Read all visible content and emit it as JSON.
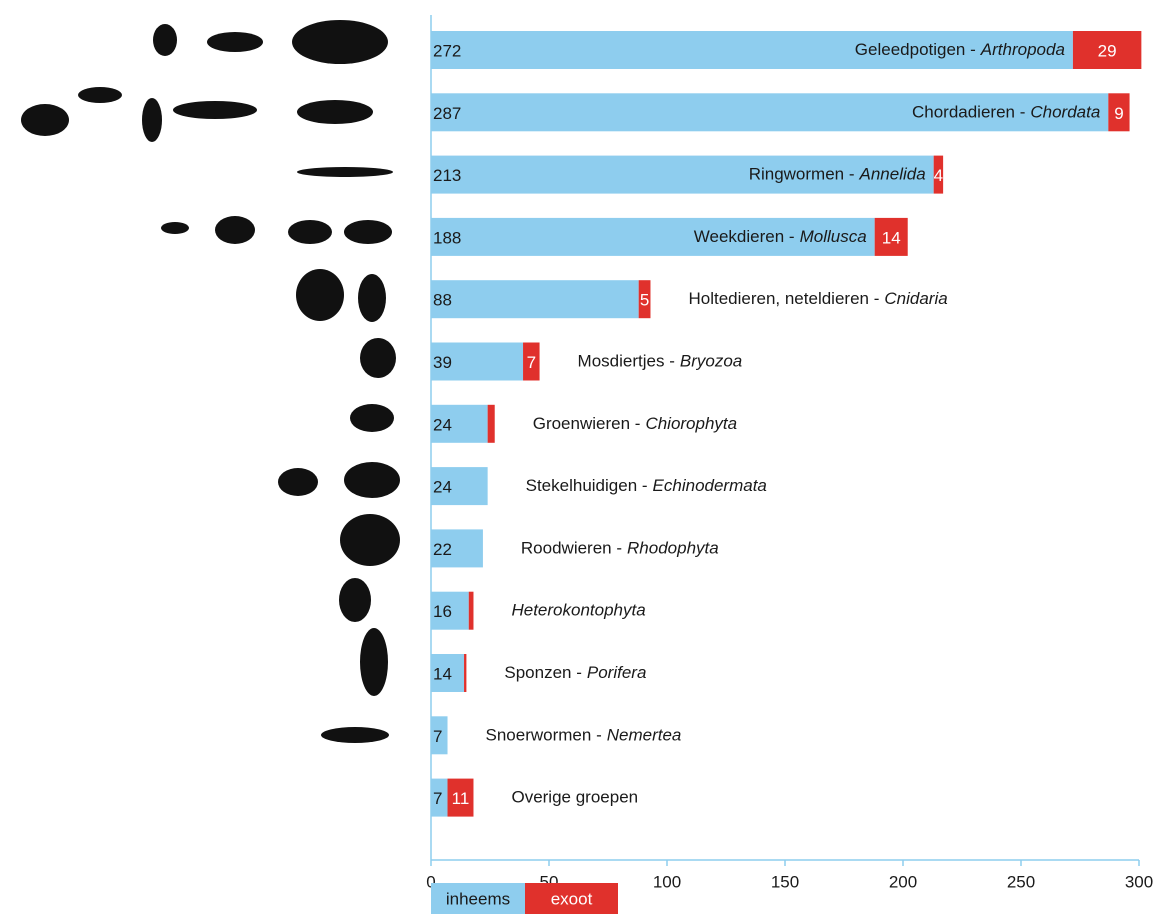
{
  "chart_data": {
    "type": "stacked_barh",
    "categories": [
      {
        "name": "Geleedpotigen -",
        "latin": "Arthropoda"
      },
      {
        "name": "Chordadieren -",
        "latin": "Chordata"
      },
      {
        "name": "Ringwormen -",
        "latin": "Annelida"
      },
      {
        "name": "Weekdieren -",
        "latin": "Mollusca"
      },
      {
        "name": "Holtedieren, neteldieren -",
        "latin": "Cnidaria"
      },
      {
        "name": "Mosdiertjes -",
        "latin": "Bryozoa"
      },
      {
        "name": "Groenwieren -",
        "latin": "Chiorophyta"
      },
      {
        "name": "Stekelhuidigen -",
        "latin": "Echinodermata"
      },
      {
        "name": "Roodwieren -",
        "latin": "Rhodophyta"
      },
      {
        "latin": "Heterokontophyta"
      },
      {
        "name": "Sponzen -",
        "latin": "Porifera"
      },
      {
        "name": "Snoerwormen -",
        "latin": "Nemertea"
      },
      {
        "name": "Overige groepen"
      }
    ],
    "series": [
      {
        "name": "inheems",
        "color": "#8ecdee",
        "values": [
          272,
          287,
          213,
          188,
          88,
          39,
          24,
          24,
          22,
          16,
          14,
          7,
          7
        ]
      },
      {
        "name": "exoot",
        "color": "#e0312c",
        "values": [
          29,
          9,
          4,
          14,
          5,
          7,
          3,
          0,
          0,
          2,
          1,
          0,
          11
        ]
      }
    ],
    "xlim": [
      0,
      300
    ],
    "xticks": [
      0,
      50,
      100,
      150,
      200,
      250,
      300
    ]
  }
}
